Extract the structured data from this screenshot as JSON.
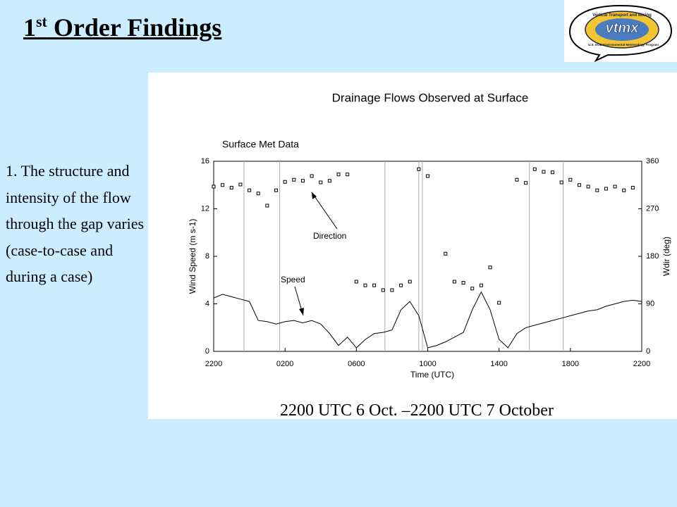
{
  "slide": {
    "title": {
      "number": "1",
      "suffix": "st",
      "text": "Order Findings"
    },
    "body": "1. The structure and intensity of the flow through the gap varies (case-to-case and during a case)",
    "caption": "2200 UTC 6 Oct. –2200 UTC 7 October",
    "logo": {
      "name": "vtmx",
      "ring_top": "Vertical Transport and Mixing",
      "ring_bottom": "U.S. DOE Environmental Meteorology Program"
    }
  },
  "chart_data": {
    "type": "line",
    "title": "Drainage Flows Observed at Surface",
    "subtitle": "Surface Met Data",
    "x_label": "Time (UTC)",
    "y_label": "Wind Speed (m s-1)",
    "y2_label": "Wdir (deg)",
    "x": [
      0,
      0.5,
      1,
      1.5,
      2,
      2.5,
      3,
      3.5,
      4,
      4.5,
      5,
      5.5,
      6,
      6.5,
      7,
      7.5,
      8,
      8.5,
      9,
      9.5,
      10,
      10.5,
      11,
      11.5,
      12,
      12.5,
      13,
      13.5,
      14,
      14.5,
      15,
      15.5,
      16,
      16.5,
      17,
      17.5,
      18,
      18.5,
      19,
      19.5,
      20,
      20.5,
      21,
      21.5,
      22,
      22.5,
      23,
      23.5,
      24
    ],
    "series": [
      {
        "name": "Speed",
        "color": "#000000",
        "mode": "line",
        "values": [
          4.5,
          4.8,
          4.6,
          4.4,
          4.2,
          2.6,
          2.5,
          2.3,
          2.5,
          2.6,
          2.4,
          2.6,
          2.3,
          1.5,
          0.5,
          1.2,
          0.3,
          1.0,
          1.5,
          1.6,
          1.8,
          3.5,
          4.2,
          3.0,
          0.3,
          0.5,
          0.8,
          1.2,
          1.6,
          3.5,
          5.0,
          3.5,
          1.0,
          0.3,
          1.5,
          2.0,
          2.2,
          2.4,
          2.6,
          2.8,
          3.0,
          3.2,
          3.4,
          3.5,
          3.8,
          4.0,
          4.2,
          4.3,
          4.2
        ]
      },
      {
        "name": "Direction",
        "color": "#000000",
        "mode": "markers",
        "axis": "y2",
        "values": [
          312,
          315,
          310,
          316,
          305,
          299,
          276,
          305,
          321,
          325,
          323,
          332,
          320,
          323,
          335,
          335,
          132,
          125,
          125,
          116,
          116,
          125,
          132,
          345,
          332,
          null,
          185,
          132,
          130,
          119,
          125,
          159,
          92,
          null,
          325,
          319,
          345,
          340,
          339,
          320,
          325,
          315,
          312,
          305,
          308,
          312,
          305,
          310,
          null
        ]
      }
    ],
    "xlim": [
      0,
      24
    ],
    "xticks": [
      {
        "value": 0,
        "label": "2200"
      },
      {
        "value": 4,
        "label": "0200"
      },
      {
        "value": 8,
        "label": "0600"
      },
      {
        "value": 12,
        "label": "1000"
      },
      {
        "value": 16,
        "label": "1400"
      },
      {
        "value": 20,
        "label": "1800"
      },
      {
        "value": 24,
        "label": "2200"
      }
    ],
    "ylim": [
      0,
      16
    ],
    "yticks": [
      0,
      4,
      8,
      12,
      16
    ],
    "y2lim": [
      0,
      360
    ],
    "y2ticks": [
      0,
      90,
      180,
      270,
      360
    ],
    "vlines": [
      1.7,
      3.7,
      9.6,
      11.5,
      11.7,
      17.7,
      19.6
    ]
  }
}
